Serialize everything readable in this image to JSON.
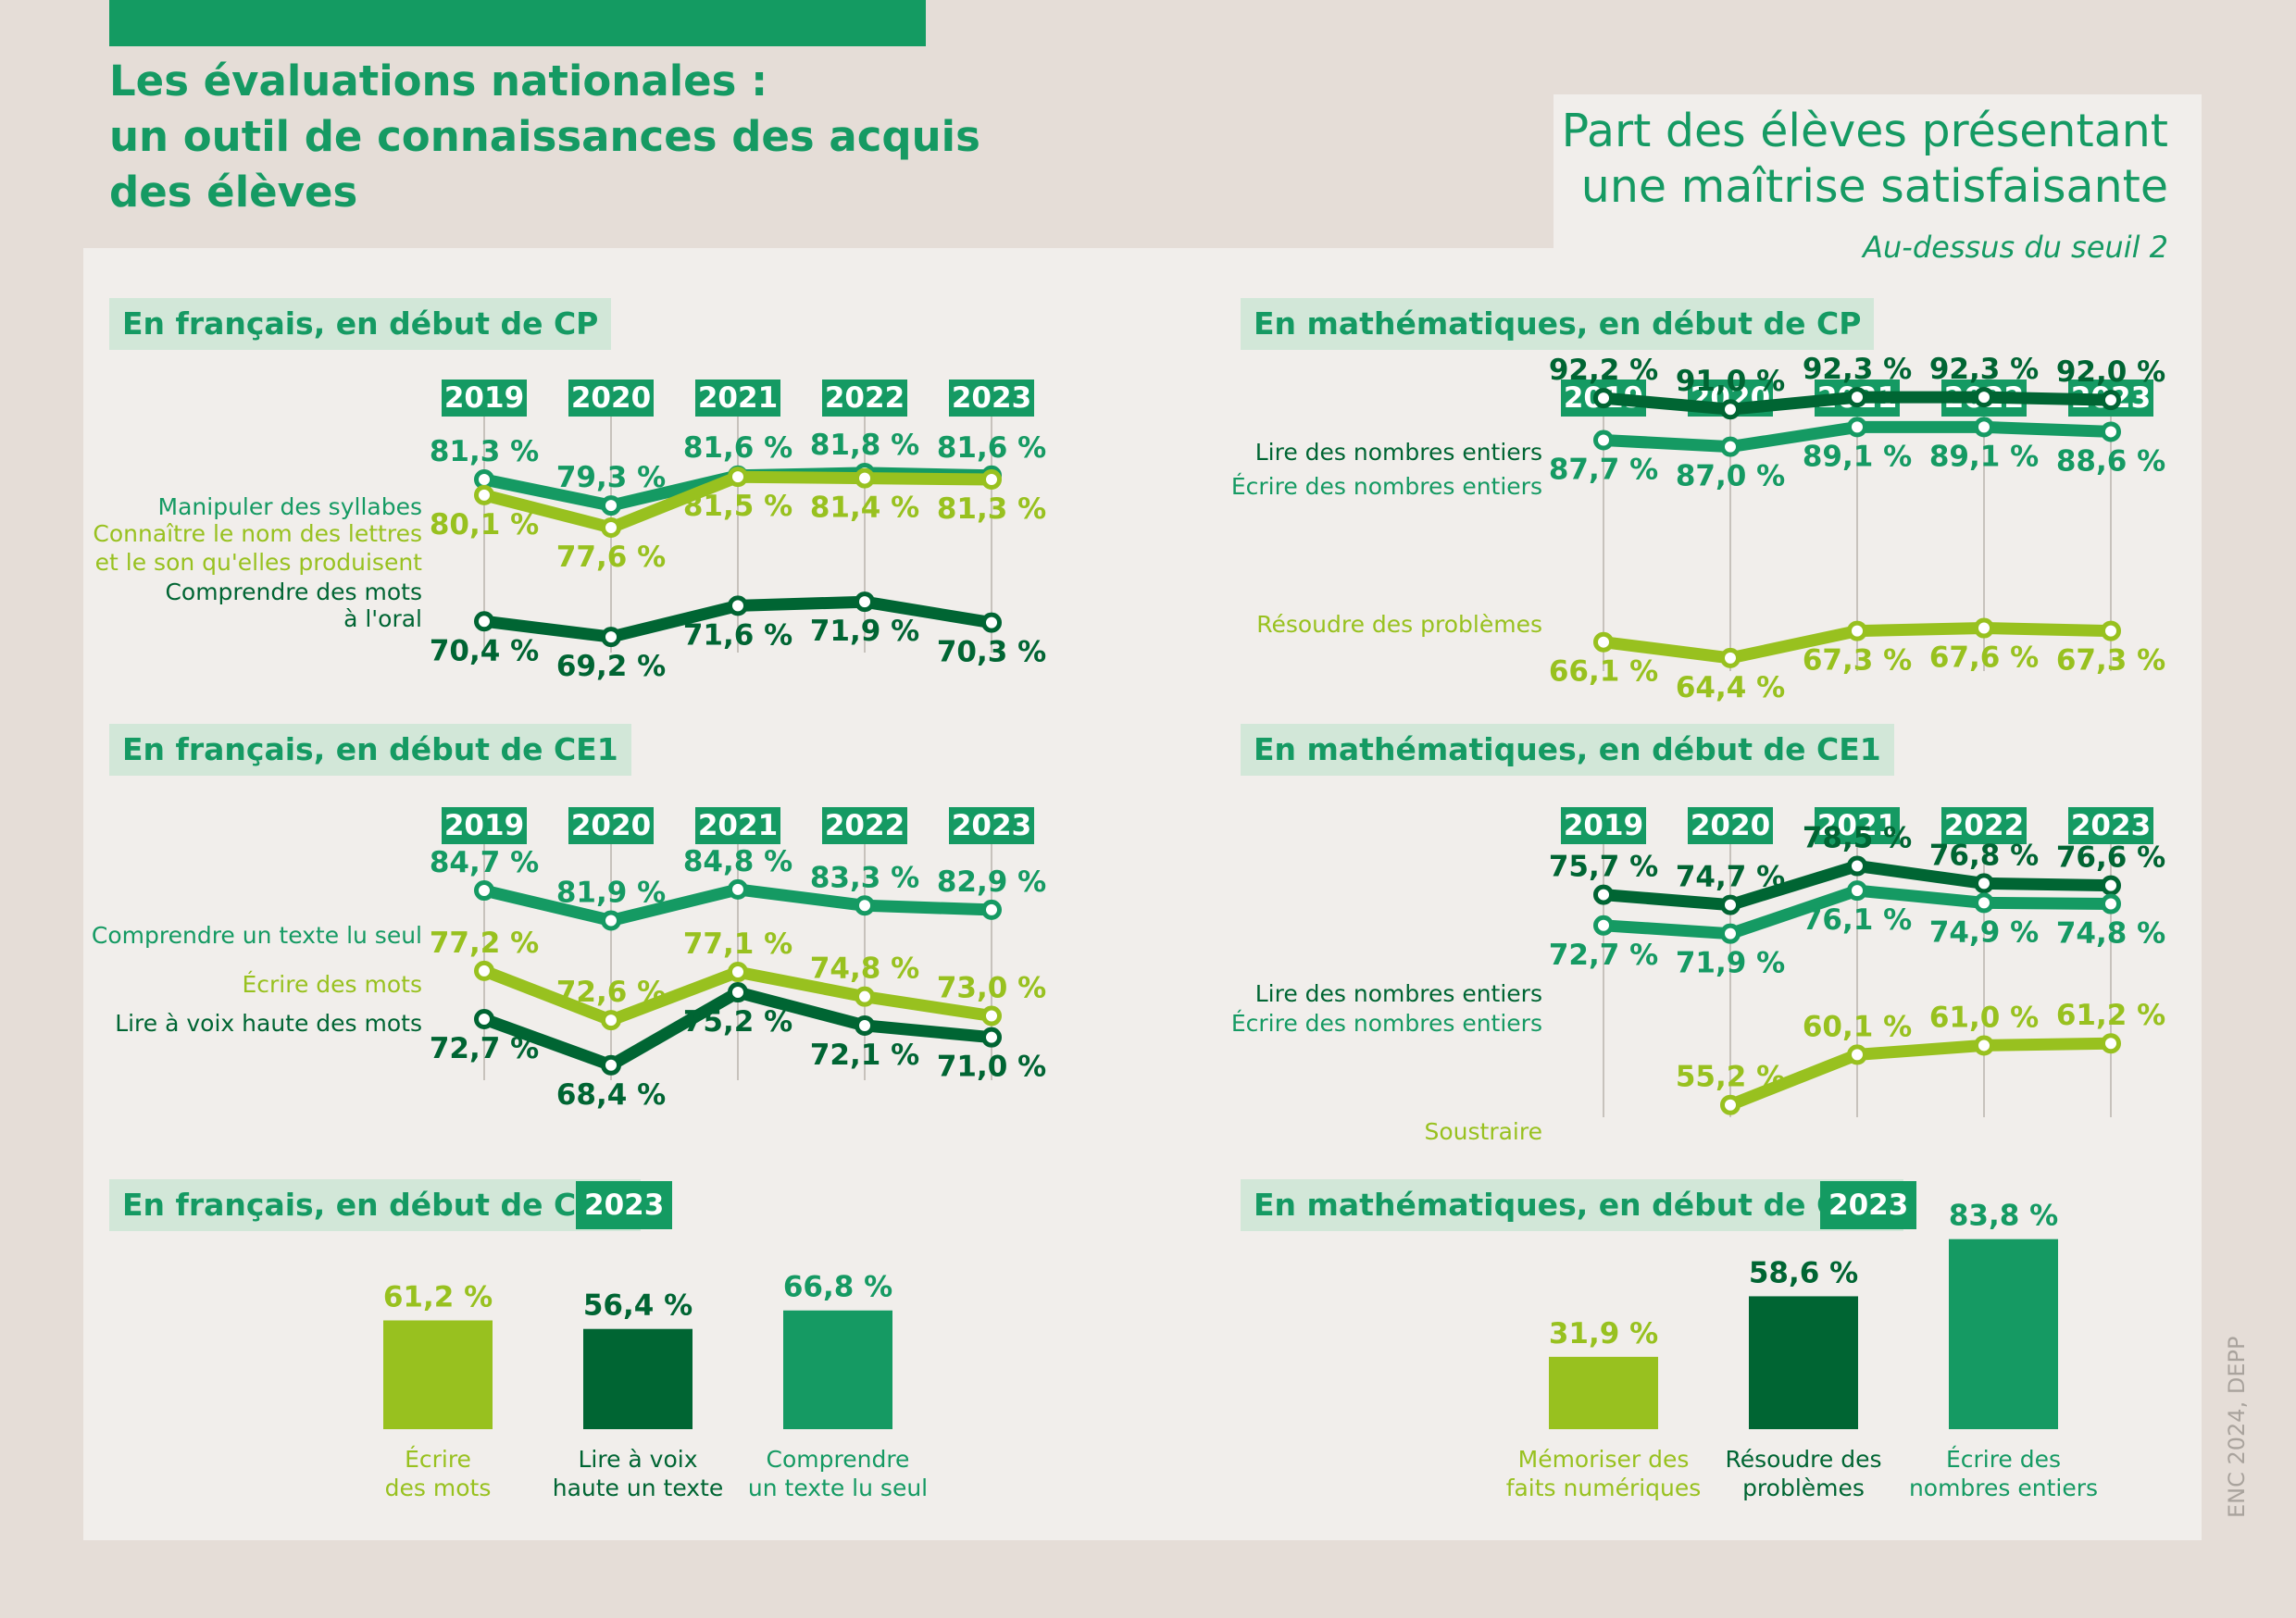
{
  "title": {
    "lines": [
      "Les évaluations nationales :",
      "un outil de connaissances des acquis",
      "des élèves"
    ]
  },
  "subtitle": {
    "lines": [
      "Part des élèves présentant",
      "une maîtrise satisfaisante"
    ],
    "note": "Au-dessus du seuil 2"
  },
  "source": "ENC 2024, DEPP",
  "colors": {
    "mid_green": "#159a63",
    "light_green": "#98c11f",
    "dark_green": "#006533",
    "header_bg": "#d2e7d8",
    "panel_bg": "#f1eeeb",
    "page_bg": "#e5ddd7"
  },
  "sections": {
    "fr_cp": {
      "title": "En français, en début de CP"
    },
    "math_cp": {
      "title": "En mathématiques, en début de CP"
    },
    "fr_ce1": {
      "title": "En français, en début de CE1"
    },
    "math_ce1": {
      "title": "En mathématiques, en début de CE1"
    },
    "fr_cm1": {
      "title": "En français, en début de CM1",
      "year": "2023"
    },
    "math_cm1": {
      "title": "En mathématiques, en début de CM1",
      "year": "2023"
    }
  },
  "chart_data": [
    {
      "id": "fr_cp",
      "type": "line",
      "title": "En français, en début de CP",
      "x": [
        "2019",
        "2020",
        "2021",
        "2022",
        "2023"
      ],
      "ylim": [
        68,
        84
      ],
      "series": [
        {
          "name": "Manipuler des syllabes",
          "label_lines": [
            "Manipuler des syllabes"
          ],
          "color": "mid_green",
          "values": [
            81.3,
            79.3,
            81.6,
            81.8,
            81.6
          ],
          "labels": [
            "81,3 %",
            "79,3 %",
            "81,6 %",
            "81,8 %",
            "81,6 %"
          ],
          "label_pos": [
            "above",
            "above",
            "above",
            "above",
            "above"
          ]
        },
        {
          "name": "Connaître le nom des lettres et le son qu'elles produisent",
          "label_lines": [
            "Connaître le nom des lettres",
            "et le son qu'elles produisent"
          ],
          "color": "light_green",
          "values": [
            80.1,
            77.6,
            81.5,
            81.4,
            81.3
          ],
          "labels": [
            "80,1 %",
            "77,6 %",
            "81,5 %",
            "81,4 %",
            "81,3 %"
          ],
          "label_pos": [
            "below",
            "below",
            "below",
            "below",
            "below"
          ]
        },
        {
          "name": "Comprendre des mots à l'oral",
          "label_lines": [
            "Comprendre des mots",
            "à l'oral"
          ],
          "color": "dark_green",
          "values": [
            70.4,
            69.2,
            71.6,
            71.9,
            70.3
          ],
          "labels": [
            "70,4 %",
            "69,2 %",
            "71,6 %",
            "71,9 %",
            "70,3 %"
          ],
          "label_pos": [
            "below",
            "below",
            "below",
            "below",
            "below"
          ]
        }
      ]
    },
    {
      "id": "math_cp",
      "type": "line",
      "title": "En mathématiques, en début de CP",
      "x": [
        "2019",
        "2020",
        "2021",
        "2022",
        "2023"
      ],
      "ylim": [
        63,
        93
      ],
      "series": [
        {
          "name": "Lire des nombres entiers",
          "label_lines": [
            "Lire des nombres entiers"
          ],
          "color": "dark_green",
          "values": [
            92.2,
            91.0,
            92.3,
            92.3,
            92.0
          ],
          "labels": [
            "92,2 %",
            "91,0 %",
            "92,3 %",
            "92,3 %",
            "92,0 %"
          ],
          "label_pos": [
            "above",
            "above",
            "above",
            "above",
            "above"
          ]
        },
        {
          "name": "Écrire des nombres entiers",
          "label_lines": [
            "Écrire des nombres entiers"
          ],
          "color": "mid_green",
          "values": [
            87.7,
            87.0,
            89.1,
            89.1,
            88.6
          ],
          "labels": [
            "87,7 %",
            "87,0 %",
            "89,1 %",
            "89,1 %",
            "88,6 %"
          ],
          "label_pos": [
            "below",
            "below",
            "below",
            "below",
            "below"
          ]
        },
        {
          "name": "Résoudre des problèmes",
          "label_lines": [
            "Résoudre des problèmes"
          ],
          "color": "light_green",
          "values": [
            66.1,
            64.4,
            67.3,
            67.6,
            67.3
          ],
          "labels": [
            "66,1 %",
            "64,4 %",
            "67,3 %",
            "67,6 %",
            "67,3 %"
          ],
          "label_pos": [
            "below",
            "below",
            "below",
            "below",
            "below"
          ]
        }
      ]
    },
    {
      "id": "fr_ce1",
      "type": "line",
      "title": "En français, en début de CE1",
      "x": [
        "2019",
        "2020",
        "2021",
        "2022",
        "2023"
      ],
      "ylim": [
        67,
        86
      ],
      "series": [
        {
          "name": "Comprendre un texte lu seul",
          "label_lines": [
            "Comprendre un texte lu seul"
          ],
          "color": "mid_green",
          "values": [
            84.7,
            81.9,
            84.8,
            83.3,
            82.9
          ],
          "labels": [
            "84,7 %",
            "81,9 %",
            "84,8 %",
            "83,3 %",
            "82,9 %"
          ],
          "label_pos": [
            "above",
            "above",
            "above",
            "above",
            "above"
          ]
        },
        {
          "name": "Écrire des mots",
          "label_lines": [
            "Écrire des mots"
          ],
          "color": "light_green",
          "values": [
            77.2,
            72.6,
            77.1,
            74.8,
            73.0
          ],
          "labels": [
            "77,2 %",
            "72,6 %",
            "77,1 %",
            "74,8 %",
            "73,0 %"
          ],
          "label_pos": [
            "above",
            "above",
            "above",
            "above",
            "above"
          ]
        },
        {
          "name": "Lire à voix haute des mots",
          "label_lines": [
            "Lire à voix haute des mots"
          ],
          "color": "dark_green",
          "values": [
            72.7,
            68.4,
            75.2,
            72.1,
            71.0
          ],
          "labels": [
            "72,7 %",
            "68,4 %",
            "75,2 %",
            "72,1 %",
            "71,0 %"
          ],
          "label_pos": [
            "below",
            "below",
            "below",
            "below",
            "below"
          ]
        }
      ]
    },
    {
      "id": "math_ce1",
      "type": "line",
      "title": "En mathématiques, en début de CE1",
      "x": [
        "2019",
        "2020",
        "2021",
        "2022",
        "2023"
      ],
      "ylim": [
        54,
        79
      ],
      "series": [
        {
          "name": "Lire des nombres entiers",
          "label_lines": [
            "Lire des nombres entiers"
          ],
          "color": "dark_green",
          "values": [
            75.7,
            74.7,
            78.5,
            76.8,
            76.6
          ],
          "labels": [
            "75,7 %",
            "74,7 %",
            "78,5 %",
            "76,8 %",
            "76,6 %"
          ],
          "label_pos": [
            "above",
            "above",
            "above",
            "above",
            "above"
          ]
        },
        {
          "name": "Écrire des nombres entiers",
          "label_lines": [
            "Écrire des nombres entiers"
          ],
          "color": "mid_green",
          "values": [
            72.7,
            71.9,
            76.1,
            74.9,
            74.8
          ],
          "labels": [
            "72,7 %",
            "71,9 %",
            "76,1 %",
            "74,9 %",
            "74,8 %"
          ],
          "label_pos": [
            "below",
            "below",
            "below",
            "below",
            "below"
          ]
        },
        {
          "name": "Soustraire",
          "label_lines": [
            "Soustraire"
          ],
          "color": "light_green",
          "values": [
            null,
            55.2,
            60.1,
            61.0,
            61.2
          ],
          "labels": [
            null,
            "55,2 %",
            "60,1 %",
            "61,0 %",
            "61,2 %"
          ],
          "label_pos": [
            null,
            "above",
            "above",
            "above",
            "above"
          ]
        }
      ]
    },
    {
      "id": "fr_cm1",
      "type": "bar",
      "title": "En français, en début de CM1",
      "year": "2023",
      "ylim": [
        0,
        100
      ],
      "categories": [
        "Écrire des mots",
        "Lire à voix haute un texte",
        "Comprendre un texte lu seul"
      ],
      "category_lines": [
        [
          "Écrire",
          "des mots"
        ],
        [
          "Lire à voix",
          "haute un texte"
        ],
        [
          "Comprendre",
          "un texte lu seul"
        ]
      ],
      "values": [
        61.2,
        56.4,
        66.8
      ],
      "labels": [
        "61,2 %",
        "56,4 %",
        "66,8 %"
      ],
      "colors": [
        "light_green",
        "dark_green",
        "mid_green"
      ]
    },
    {
      "id": "math_cm1",
      "type": "bar",
      "title": "En mathématiques, en début de CM1",
      "year": "2023",
      "ylim": [
        0,
        100
      ],
      "categories": [
        "Mémoriser des faits numériques",
        "Résoudre des problèmes",
        "Écrire des nombres entiers"
      ],
      "category_lines": [
        [
          "Mémoriser des",
          "faits numériques"
        ],
        [
          "Résoudre des",
          "problèmes"
        ],
        [
          "Écrire des",
          "nombres entiers"
        ]
      ],
      "values": [
        31.9,
        58.6,
        83.8
      ],
      "labels": [
        "31,9 %",
        "58,6 %",
        "83,8 %"
      ],
      "colors": [
        "light_green",
        "dark_green",
        "mid_green"
      ]
    }
  ]
}
